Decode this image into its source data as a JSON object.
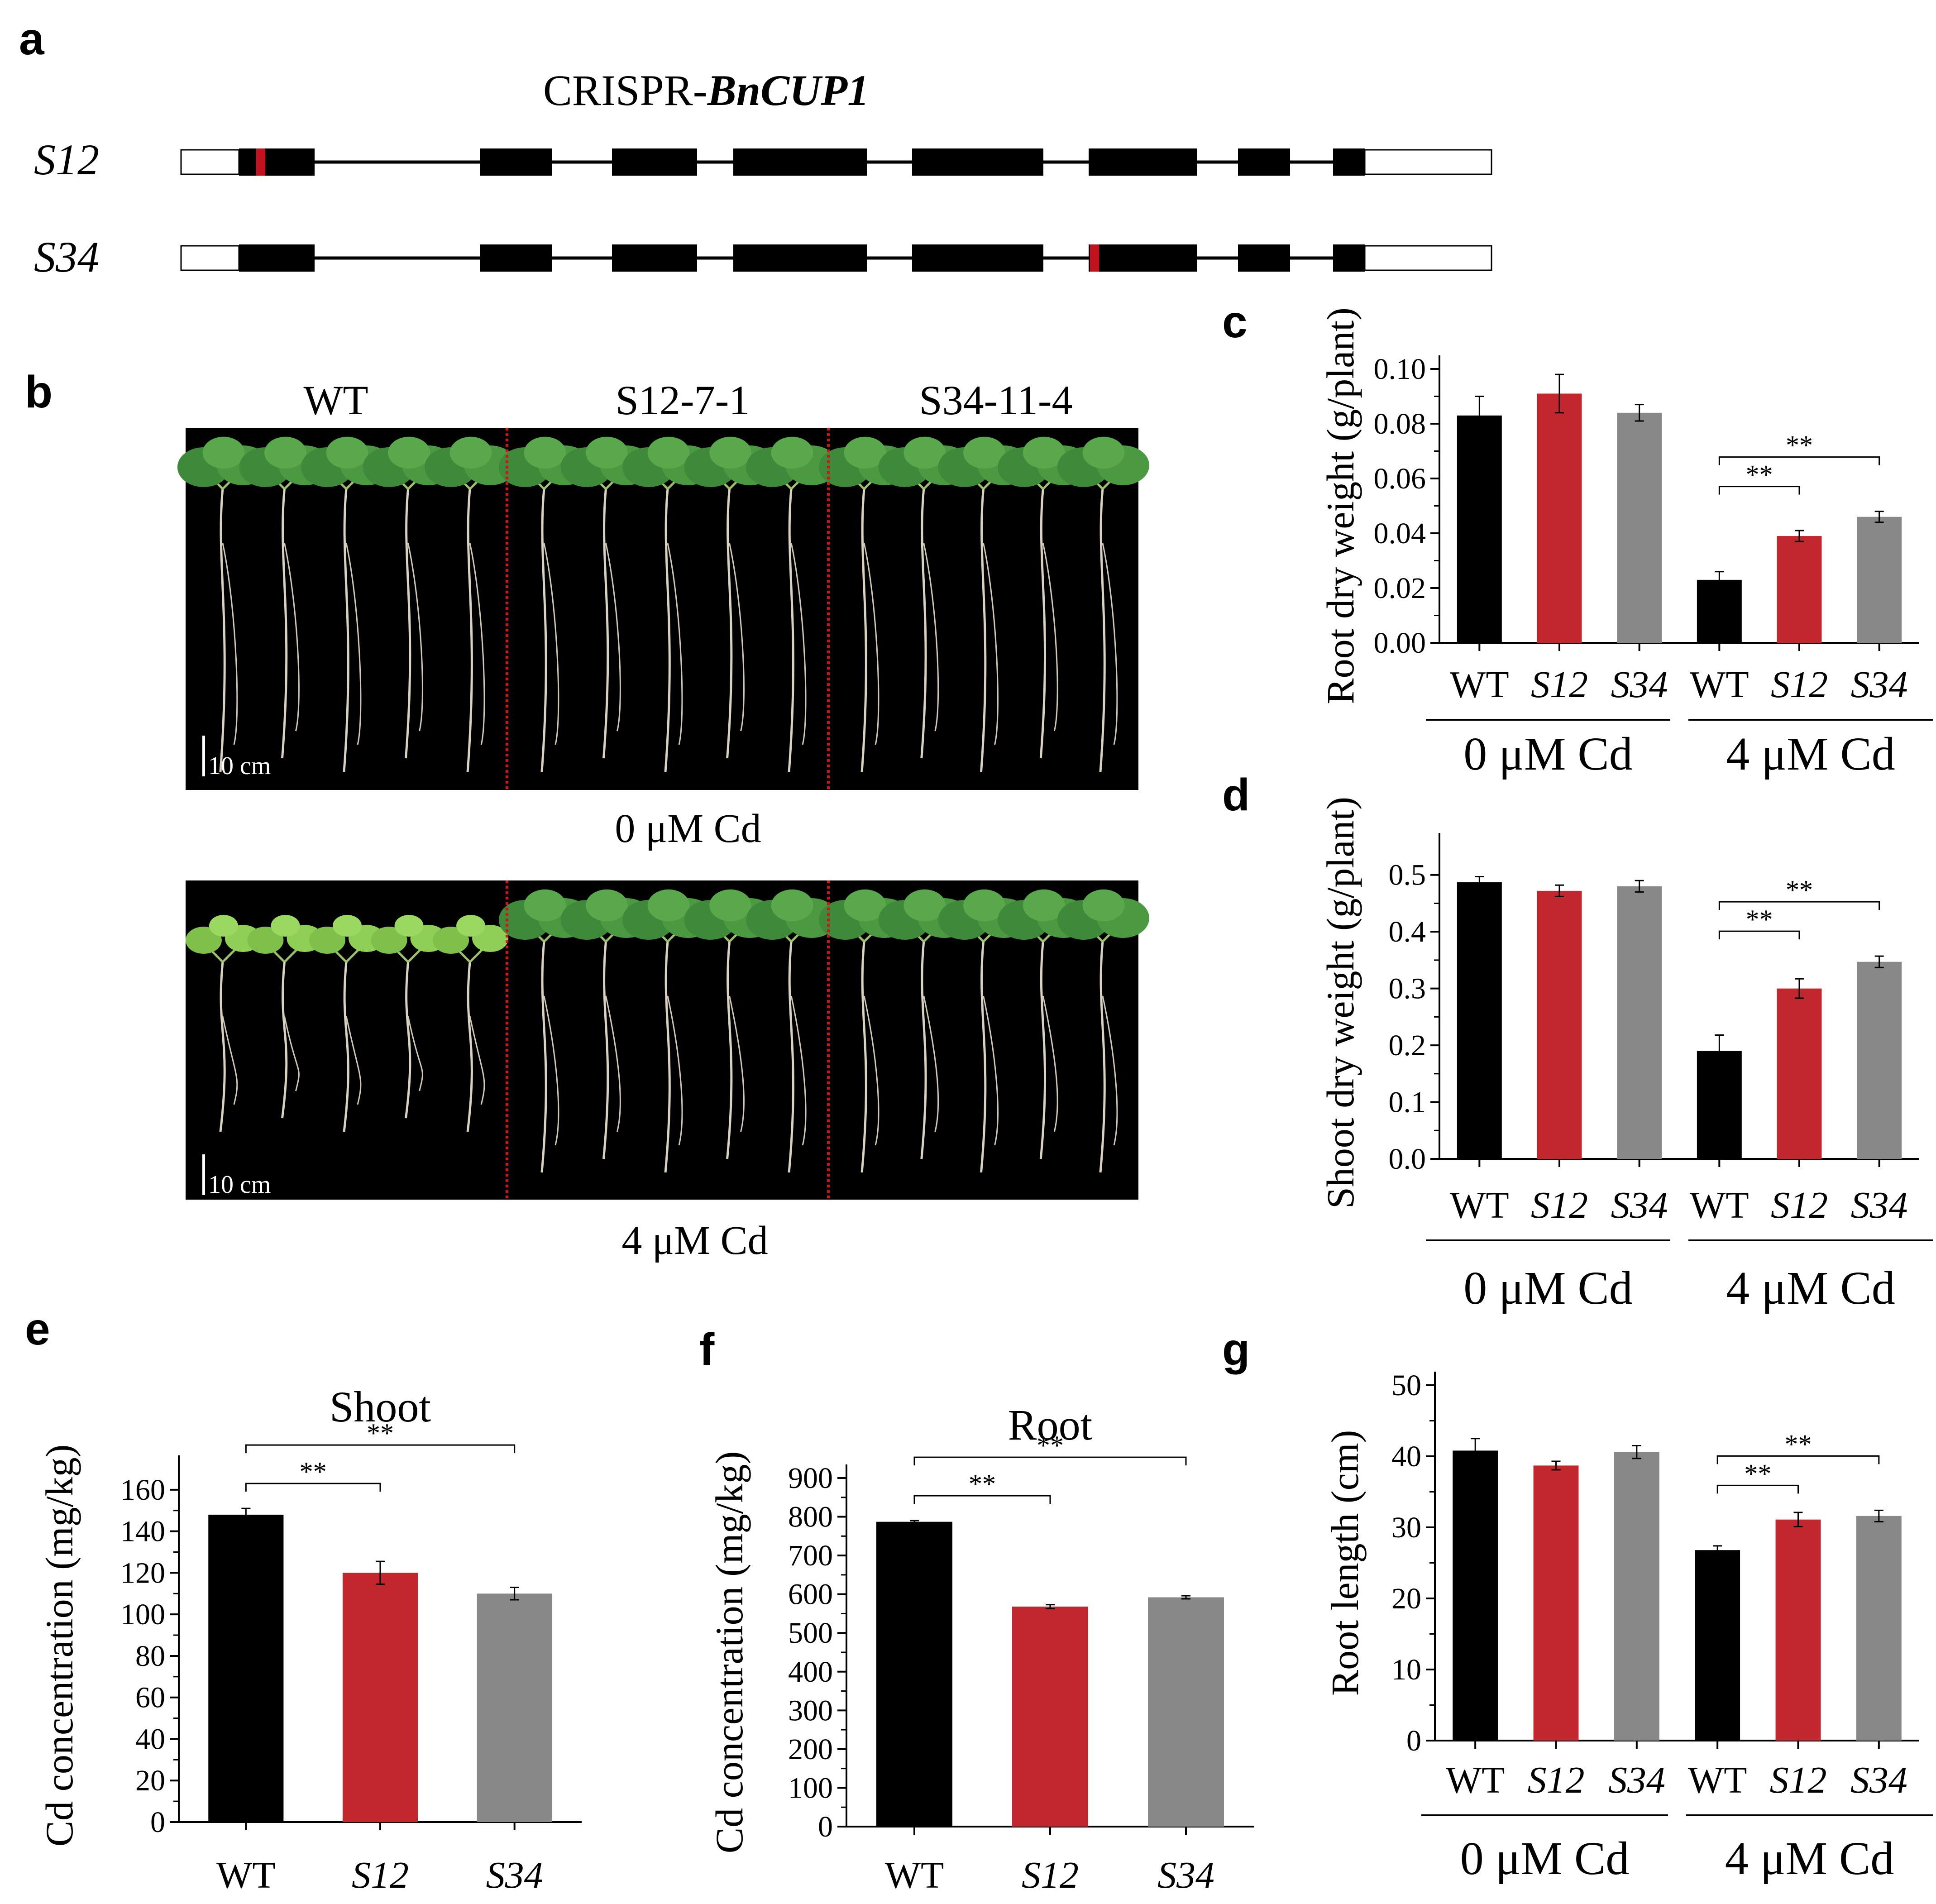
{
  "panels": {
    "a": {
      "letter": "a",
      "title_prefix": "CRISPR-",
      "title_gene": "BnCUP1",
      "genes": [
        {
          "label": "S12",
          "target_exon": 1
        },
        {
          "label": "S34",
          "target_exon": 6
        }
      ]
    },
    "b": {
      "letter": "b",
      "lines": [
        "WT",
        "S12-7-1",
        "S34-11-4"
      ],
      "conditions": [
        "0 μM Cd",
        "4 μM Cd"
      ],
      "scale_bar": "10 cm"
    },
    "c": {
      "letter": "c"
    },
    "d": {
      "letter": "d"
    },
    "e": {
      "letter": "e"
    },
    "f": {
      "letter": "f"
    },
    "g": {
      "letter": "g"
    }
  },
  "colors": {
    "WT": "#000000",
    "S12": "#c1272d",
    "S34": "#888888",
    "target_site": "#c1121f",
    "photo_background": "#000000",
    "divider": "#e01010"
  },
  "chart_data": [
    {
      "panel": "c",
      "type": "bar",
      "ylabel": "Root dry weight (g/plant)",
      "categories": [
        "WT",
        "S12",
        "S34",
        "WT",
        "S12",
        "S34"
      ],
      "groups": [
        "0 μM Cd",
        "4 μM Cd"
      ],
      "values": [
        0.083,
        0.091,
        0.084,
        0.023,
        0.039,
        0.046
      ],
      "errors": [
        0.007,
        0.007,
        0.003,
        0.003,
        0.002,
        0.002
      ],
      "ylim": [
        0,
        0.1
      ],
      "yticks": [
        "0.00",
        "0.02",
        "0.04",
        "0.06",
        "0.08",
        "0.10"
      ],
      "significance": [
        {
          "from": 3,
          "to": 4,
          "label": "**"
        },
        {
          "from": 3,
          "to": 5,
          "label": "**"
        }
      ]
    },
    {
      "panel": "d",
      "type": "bar",
      "ylabel": "Shoot dry weight (g/plant)",
      "categories": [
        "WT",
        "S12",
        "S34",
        "WT",
        "S12",
        "S34"
      ],
      "groups": [
        "0 μM Cd",
        "4 μM Cd"
      ],
      "values": [
        0.487,
        0.472,
        0.48,
        0.19,
        0.3,
        0.347
      ],
      "errors": [
        0.01,
        0.01,
        0.01,
        0.028,
        0.017,
        0.01
      ],
      "ylim": [
        0,
        0.55
      ],
      "yticks": [
        "0.0",
        "0.1",
        "0.2",
        "0.3",
        "0.4",
        "0.5"
      ],
      "significance": [
        {
          "from": 3,
          "to": 4,
          "label": "**"
        },
        {
          "from": 3,
          "to": 5,
          "label": "**"
        }
      ]
    },
    {
      "panel": "e",
      "type": "bar",
      "title": "Shoot",
      "ylabel": "Cd concentration (mg/kg)",
      "categories": [
        "WT",
        "S12",
        "S34"
      ],
      "values": [
        148,
        120,
        110
      ],
      "errors": [
        3,
        5.5,
        3
      ],
      "ylim": [
        0,
        170
      ],
      "yticks": [
        "0",
        "20",
        "40",
        "60",
        "80",
        "100",
        "120",
        "140",
        "160"
      ],
      "significance": [
        {
          "from": 0,
          "to": 1,
          "label": "**"
        },
        {
          "from": 0,
          "to": 2,
          "label": "**"
        }
      ]
    },
    {
      "panel": "f",
      "type": "bar",
      "title": "Root",
      "ylabel": "Cd concentration (mg/kg)",
      "categories": [
        "WT",
        "S12",
        "S34"
      ],
      "values": [
        787,
        568,
        592
      ],
      "errors": [
        3,
        5,
        4
      ],
      "ylim": [
        0,
        900
      ],
      "yticks": [
        "0",
        "100",
        "200",
        "300",
        "400",
        "500",
        "600",
        "700",
        "800",
        "900"
      ],
      "significance": [
        {
          "from": 0,
          "to": 1,
          "label": "**"
        },
        {
          "from": 0,
          "to": 2,
          "label": "**"
        }
      ]
    },
    {
      "panel": "g",
      "type": "bar",
      "ylabel": "Root length (cm)",
      "categories": [
        "WT",
        "S12",
        "S34",
        "WT",
        "S12",
        "S34"
      ],
      "groups": [
        "0 μM Cd",
        "4 μM Cd"
      ],
      "values": [
        40.8,
        38.7,
        40.6,
        26.8,
        31.1,
        31.6
      ],
      "errors": [
        1.7,
        0.6,
        0.9,
        0.6,
        1.0,
        0.8
      ],
      "ylim": [
        0,
        50
      ],
      "yticks": [
        "0",
        "10",
        "20",
        "30",
        "40",
        "50"
      ],
      "significance": [
        {
          "from": 3,
          "to": 4,
          "label": "**"
        },
        {
          "from": 3,
          "to": 5,
          "label": "**"
        }
      ]
    }
  ]
}
